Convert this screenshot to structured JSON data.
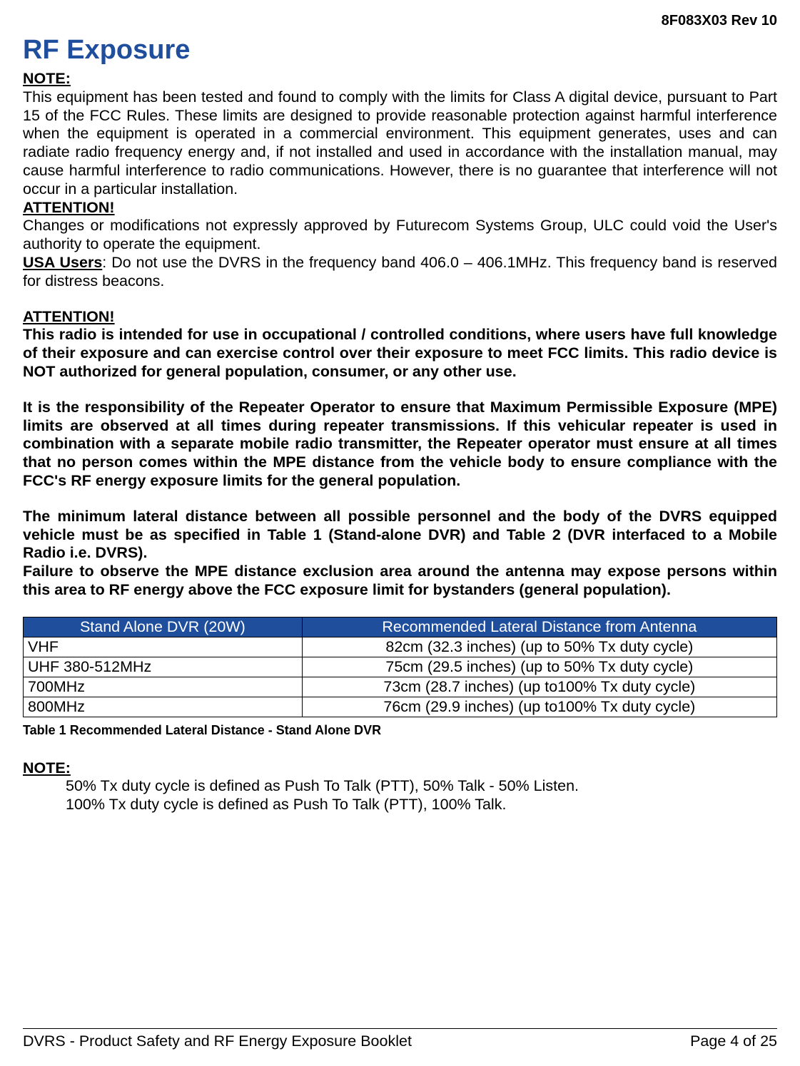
{
  "header": {
    "doc_ref": "8F083X03 Rev 10"
  },
  "title": "RF Exposure",
  "labels": {
    "note": "NOTE:",
    "attention": "ATTENTION!",
    "usa_users": "USA Users"
  },
  "paragraphs": {
    "note1": "This equipment has been tested and found to comply with the limits for Class A digital device, pursuant to Part 15 of the FCC Rules. These limits are designed to provide reasonable protection against harmful interference when the equipment is operated in a commercial environment. This equipment generates, uses and can radiate radio frequency energy and, if not installed and used in accordance with the installation manual, may cause harmful interference to radio communications. However, there is no guarantee that interference will not occur in a particular installation.",
    "attention1": "Changes or modifications not expressly approved by Futurecom Systems Group, ULC could void the User's authority to operate the equipment.",
    "usa_users": ": Do not use the DVRS in the frequency band 406.0 – 406.1MHz. This frequency band is reserved for distress beacons.",
    "attention2_p1": "This radio is intended for use in occupational / controlled conditions, where users have full knowledge of their exposure and can exercise control over their exposure to meet FCC limits. This radio device is NOT authorized for general population, consumer, or any other use.",
    "attention2_p2": "It is the responsibility of the Repeater Operator to ensure that Maximum Permissible Exposure (MPE) limits are observed at all times during repeater transmissions. If this vehicular repeater is used in combination with a separate mobile radio transmitter, the Repeater operator must ensure at all times that no person comes within the MPE distance from the vehicle body to ensure compliance with the FCC's RF energy exposure limits for the general population.",
    "attention2_p3": "The minimum lateral distance between all possible personnel and the body of the DVRS equipped vehicle must be as specified in Table 1 (Stand-alone DVR) and Table 2 (DVR interfaced to a Mobile Radio i.e. DVRS).",
    "attention2_p4": "Failure to observe the MPE distance exclusion area around the antenna may expose persons within this area to RF energy above the FCC exposure limit for bystanders (general population)."
  },
  "table1": {
    "headers": {
      "col1": "Stand Alone DVR (20W)",
      "col2": "Recommended Lateral Distance from Antenna"
    },
    "rows": [
      {
        "band": "VHF",
        "distance": "82cm (32.3 inches)    (up to 50% Tx duty cycle)"
      },
      {
        "band": "UHF 380-512MHz",
        "distance": "75cm (29.5 inches)    (up to 50% Tx duty cycle)"
      },
      {
        "band": "700MHz",
        "distance": "73cm (28.7 inches)    (up to100% Tx duty cycle)"
      },
      {
        "band": "800MHz",
        "distance": "76cm (29.9 inches)    (up to100% Tx duty cycle)"
      }
    ],
    "caption": "Table 1 Recommended Lateral Distance - Stand Alone DVR"
  },
  "note2": {
    "line1": "50% Tx duty cycle is defined as Push To Talk (PTT), 50% Talk - 50% Listen.",
    "line2": "100% Tx duty cycle is defined as Push To Talk (PTT), 100% Talk."
  },
  "footer": {
    "left": "DVRS - Product Safety and RF Energy Exposure Booklet",
    "right": "Page 4 of 25"
  },
  "colors": {
    "heading": "#1f4e9c",
    "table_header_bg": "#1f4e9c",
    "table_header_fg": "#ffffff",
    "text": "#000000",
    "background": "#ffffff"
  }
}
